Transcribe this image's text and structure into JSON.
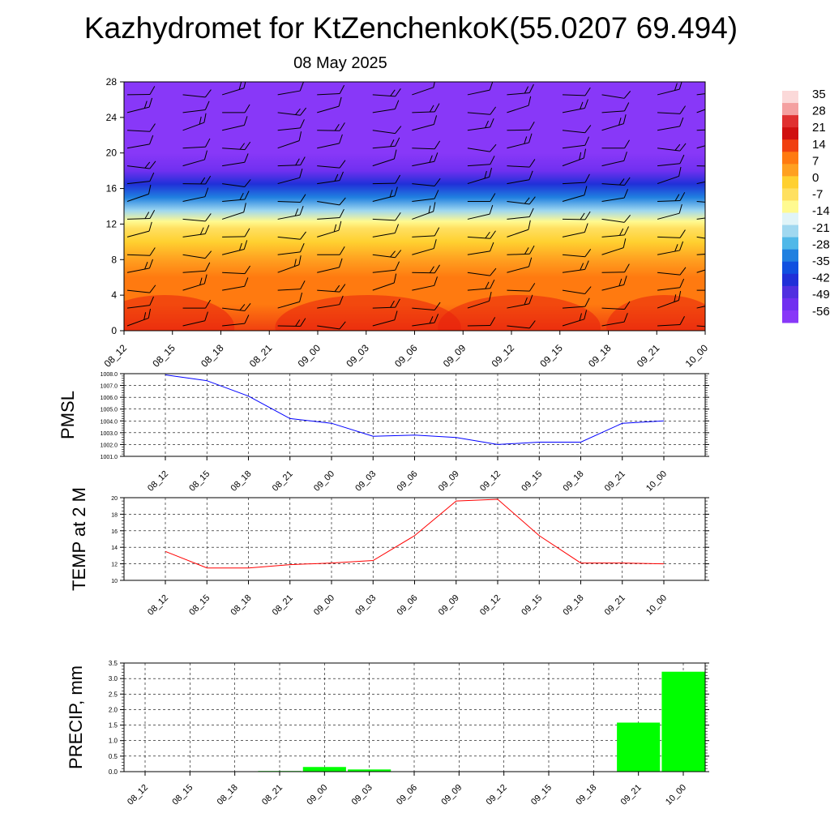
{
  "header": {
    "title": "Kazhydromet for KtZenchenkoK(55.0207 69.494)",
    "date": "08 May 2025"
  },
  "colors": {
    "pmsl_line": "#0000ff",
    "temp_line": "#ff0000",
    "precip_bar": "#00ff00",
    "grid": "#000000"
  },
  "chart_data": [
    {
      "id": "cross-section",
      "type": "heatmap",
      "title": "",
      "x_ticks": [
        "08_12",
        "08_15",
        "08_18",
        "08_21",
        "09_00",
        "09_03",
        "09_06",
        "09_09",
        "09_12",
        "09_15",
        "09_18",
        "09_21",
        "10_00"
      ],
      "y_ticks": [
        0,
        4,
        8,
        12,
        16,
        20,
        24,
        28
      ],
      "ylim": [
        0,
        28
      ],
      "legend_labels": [
        "35",
        "28",
        "21",
        "14",
        "7",
        "0",
        "-7",
        "-14",
        "-21",
        "-28",
        "-35",
        "-42",
        "-49",
        "-56"
      ],
      "legend_colors": [
        "#fbd9d9",
        "#f4a0a0",
        "#e03030",
        "#d01010",
        "#f04010",
        "#ff7a10",
        "#ffa020",
        "#ffd030",
        "#ffe060",
        "#fffa90",
        "#e0f4f8",
        "#a0d8f0",
        "#50b8e8",
        "#2080e0",
        "#1050e0",
        "#2030d8",
        "#5030e0",
        "#7030f0",
        "#8838f8"
      ],
      "vertical_profile": [
        {
          "y": 0,
          "v": 16
        },
        {
          "y": 3,
          "v": 12
        },
        {
          "y": 6,
          "v": 9
        },
        {
          "y": 8,
          "v": 6
        },
        {
          "y": 10,
          "v": 2
        },
        {
          "y": 11.5,
          "v": -4
        },
        {
          "y": 12.3,
          "v": -12
        },
        {
          "y": 13.5,
          "v": -21
        },
        {
          "y": 15,
          "v": -30
        },
        {
          "y": 16.5,
          "v": -40
        },
        {
          "y": 18,
          "v": -50
        },
        {
          "y": 20,
          "v": -56
        },
        {
          "y": 23,
          "v": -58
        },
        {
          "y": 26,
          "v": -57
        },
        {
          "y": 28,
          "v": -56
        }
      ],
      "wind_barbs": "black"
    },
    {
      "id": "pmsl",
      "type": "line",
      "ylabel": "PMSL",
      "categories": [
        "08_12",
        "08_15",
        "08_18",
        "08_21",
        "09_00",
        "09_03",
        "09_06",
        "09_09",
        "09_12",
        "09_15",
        "09_18",
        "09_21",
        "10_00"
      ],
      "values": [
        1007.9,
        1007.4,
        1006.1,
        1004.2,
        1003.8,
        1002.7,
        1002.8,
        1002.6,
        1002.0,
        1002.2,
        1002.2,
        1003.8,
        1004.0
      ],
      "ylim": [
        1001.0,
        1008.0
      ],
      "y_ticks": [
        "1001.0",
        "1002.0",
        "1003.0",
        "1004.0",
        "1005.0",
        "1006.0",
        "1007.0",
        "1008.0"
      ],
      "grid": true
    },
    {
      "id": "temp",
      "type": "line",
      "ylabel": "TEMP at 2 M",
      "categories": [
        "08_12",
        "08_15",
        "08_18",
        "08_21",
        "09_00",
        "09_03",
        "09_06",
        "09_09",
        "09_12",
        "09_15",
        "09_18",
        "09_21",
        "10_00"
      ],
      "values": [
        13.5,
        11.5,
        11.5,
        11.9,
        12.1,
        12.4,
        15.4,
        19.6,
        19.8,
        15.4,
        12.1,
        12.1,
        12.0
      ],
      "ylim": [
        10,
        20
      ],
      "y_ticks": [
        "10",
        "12",
        "14",
        "16",
        "18",
        "20"
      ],
      "grid": true
    },
    {
      "id": "precip",
      "type": "bar",
      "ylabel": "PRECIP, mm",
      "categories": [
        "08_12",
        "08_15",
        "08_18",
        "08_21",
        "09_00",
        "09_03",
        "09_06",
        "09_09",
        "09_12",
        "09_15",
        "09_18",
        "09_21",
        "10_00"
      ],
      "values": [
        0.0,
        0.0,
        0.0,
        0.02,
        0.15,
        0.07,
        0.01,
        0.0,
        0.0,
        0.0,
        0.0,
        1.58,
        3.22
      ],
      "ylim": [
        0,
        3.5
      ],
      "y_ticks": [
        "0.0",
        "0.5",
        "1.0",
        "1.5",
        "2.0",
        "2.5",
        "3.0",
        "3.5"
      ],
      "grid": true
    }
  ]
}
